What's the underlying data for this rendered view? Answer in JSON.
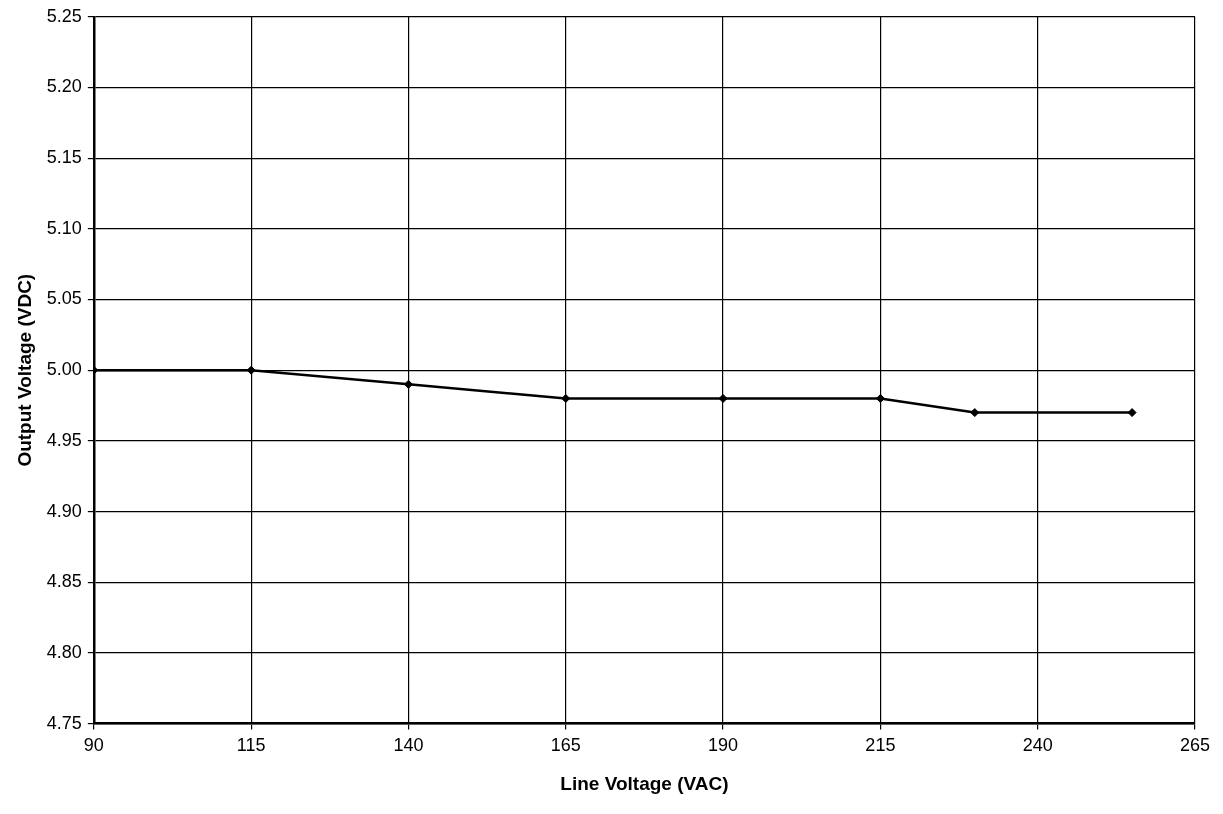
{
  "chart_data": {
    "type": "line",
    "xlabel": "Line Voltage (VAC)",
    "ylabel": "Output Voltage (VDC)",
    "x": [
      90,
      115,
      140,
      165,
      190,
      215,
      230,
      255
    ],
    "series": [
      {
        "color": "#000000",
        "values": [
          5.0,
          5.0,
          4.99,
          4.98,
          4.98,
          4.98,
          4.97,
          4.97
        ]
      }
    ],
    "xlim": [
      90,
      265
    ],
    "xticks": [
      90,
      115,
      140,
      165,
      190,
      215,
      240,
      265
    ],
    "ylim": [
      4.75,
      5.25
    ],
    "yticks": [
      {
        "value": 4.75,
        "label": "4.75"
      },
      {
        "value": 4.8,
        "label": "4.80"
      },
      {
        "value": 4.85,
        "label": "4.85"
      },
      {
        "value": 4.9,
        "label": "4.90"
      },
      {
        "value": 4.95,
        "label": "4.95"
      },
      {
        "value": 5,
        "label": "5.00"
      },
      {
        "value": 5.05,
        "label": "5.05"
      },
      {
        "value": 5.1,
        "label": "5.10"
      },
      {
        "value": 5.15,
        "label": "5.15"
      },
      {
        "value": 5.2,
        "label": "5.20"
      },
      {
        "value": 5.25,
        "label": "5.25"
      }
    ],
    "grid": true,
    "legend": false,
    "marker": "diamond",
    "line_style": "solid"
  }
}
